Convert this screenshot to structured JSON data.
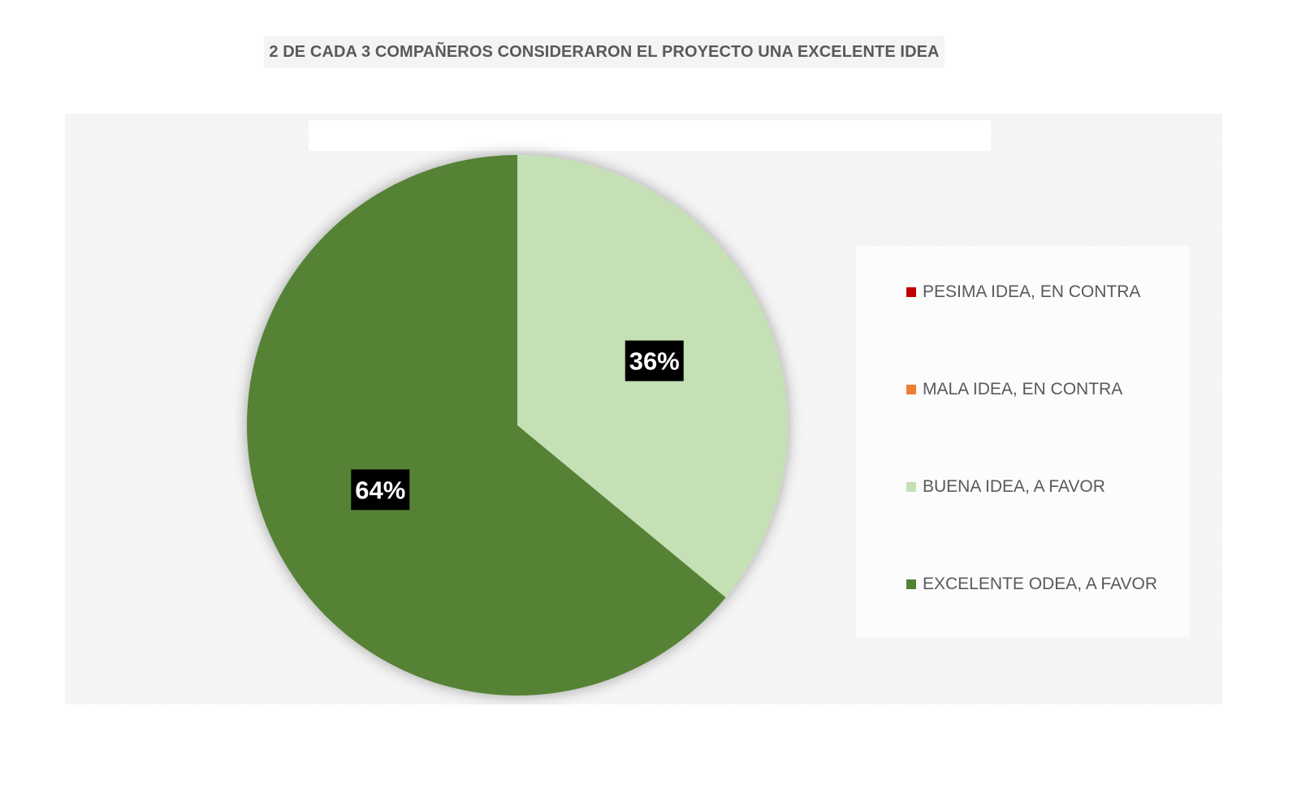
{
  "title": "2 DE CADA 3 COMPAÑEROS CONSIDERARON EL PROYECTO UNA EXCELENTE IDEA",
  "chart_data": {
    "type": "pie",
    "categories": [
      "PESIMA IDEA, EN CONTRA",
      "MALA IDEA, EN CONTRA",
      "BUENA IDEA, A FAVOR",
      "EXCELENTE ODEA, A FAVOR"
    ],
    "values": [
      0,
      0,
      36,
      64
    ],
    "colors": [
      "#c00000",
      "#ed7d31",
      "#c5e0b4",
      "#548235"
    ],
    "data_labels": [
      "",
      "",
      "36%",
      "64%"
    ],
    "legend_position": "right"
  }
}
